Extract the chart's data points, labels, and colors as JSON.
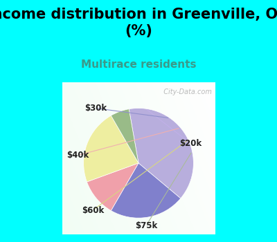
{
  "title": "Income distribution in Greenville, OH\n(%)",
  "subtitle": "Multirace residents",
  "labels": [
    "$20k",
    "$30k",
    "$40k",
    "$60k",
    "$75k"
  ],
  "sizes": [
    35,
    20,
    10,
    20,
    5
  ],
  "colors": [
    "#b8aedd",
    "#8080cc",
    "#f0a0aa",
    "#eeeea0",
    "#99bb88"
  ],
  "bg_top": "#00ffff",
  "title_fontsize": 15,
  "subtitle_fontsize": 11,
  "subtitle_color": "#3a9a8a",
  "watermark": "  City-Data.com"
}
